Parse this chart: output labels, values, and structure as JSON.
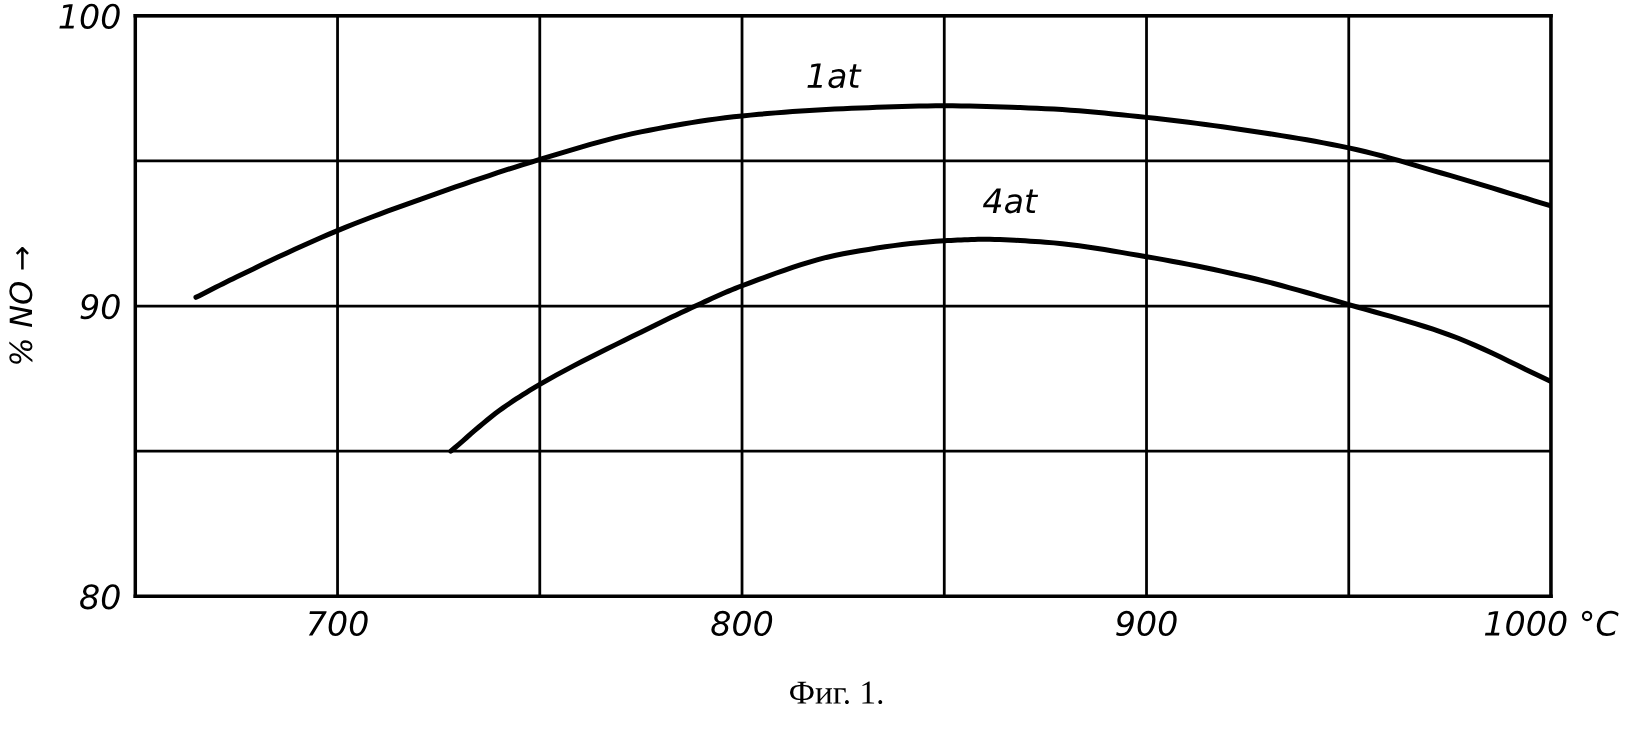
{
  "chart_data": {
    "type": "line",
    "ylabel": "% NO →",
    "annotations": [
      "Фиг. 1."
    ],
    "xlim": [
      650,
      1000
    ],
    "ylim": [
      80,
      100
    ],
    "xticks": [
      700,
      {
        "value": 750,
        "label": null
      },
      800,
      {
        "value": 850,
        "label": null
      },
      900,
      {
        "value": 950,
        "label": null
      },
      {
        "value": 1000,
        "label": "1000 °C"
      }
    ],
    "yticks": [
      80,
      {
        "value": 85,
        "label": null
      },
      90,
      {
        "value": 95,
        "label": null
      },
      100
    ],
    "grid": true,
    "line_style": "solid",
    "series": [
      {
        "name": "1at",
        "color": "#000000",
        "x": [
          665,
          675,
          700,
          725,
          750,
          775,
          800,
          825,
          850,
          875,
          900,
          925,
          950,
          975,
          1000
        ],
        "values": [
          90.3,
          91.0,
          92.6,
          93.9,
          95.05,
          96.0,
          96.55,
          96.8,
          96.9,
          96.8,
          96.5,
          96.05,
          95.45,
          94.5,
          93.45
        ]
      },
      {
        "name": "4at",
        "color": "#000000",
        "x": [
          728,
          740,
          750,
          775,
          790,
          800,
          825,
          850,
          860,
          875,
          900,
          925,
          950,
          975,
          1000
        ],
        "values": [
          85.0,
          86.4,
          87.3,
          89.1,
          90.1,
          90.7,
          91.8,
          92.25,
          92.3,
          92.2,
          91.7,
          91.0,
          90.05,
          89.0,
          87.4
        ]
      }
    ]
  }
}
